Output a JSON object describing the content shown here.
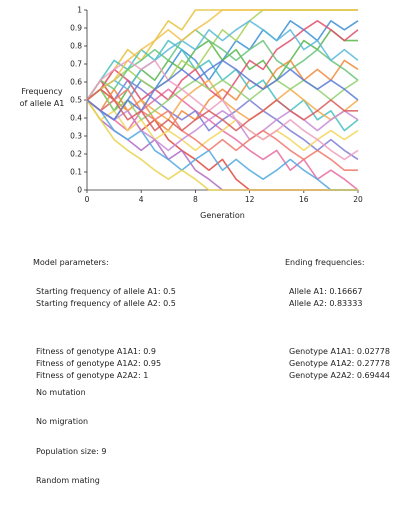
{
  "chart_data": {
    "type": "line",
    "xlabel": "Generation",
    "ylabel_lines": [
      "Frequency",
      "of allele A1"
    ],
    "xlim": [
      0,
      20
    ],
    "ylim": [
      0,
      1
    ],
    "x_ticks": [
      0,
      4,
      8,
      12,
      16,
      20
    ],
    "y_ticks": [
      0,
      0.1,
      0.2,
      0.3,
      0.4,
      0.5,
      0.6,
      0.7,
      0.8,
      0.9,
      1
    ],
    "y_tick_labels": [
      "0",
      "0.1",
      "0.2",
      "0.3",
      "0.4",
      "0.5",
      "0.6",
      "0.7",
      "0.8",
      "0.9",
      "1"
    ],
    "x": [
      0,
      1,
      2,
      3,
      4,
      5,
      6,
      7,
      8,
      9,
      10,
      11,
      12,
      13,
      14,
      15,
      16,
      17,
      18,
      19,
      20
    ],
    "series": [
      {
        "color": "#e8c23a",
        "values": [
          0.5,
          0.56,
          0.67,
          0.78,
          0.72,
          0.83,
          0.94,
          0.89,
          1,
          1,
          1,
          1,
          1,
          1,
          1,
          1,
          1,
          1,
          1,
          1,
          1
        ]
      },
      {
        "color": "#3b8fd6",
        "values": [
          0.5,
          0.44,
          0.39,
          0.5,
          0.61,
          0.56,
          0.67,
          0.78,
          0.72,
          0.61,
          0.72,
          0.83,
          0.78,
          0.89,
          0.83,
          0.94,
          0.89,
          0.83,
          0.94,
          0.89,
          0.94
        ]
      },
      {
        "color": "#e0473b",
        "values": [
          0.5,
          0.61,
          0.5,
          0.44,
          0.33,
          0.39,
          0.28,
          0.22,
          0.17,
          0.11,
          0.17,
          0.06,
          0,
          0,
          0,
          0,
          0,
          0,
          0,
          0,
          0
        ]
      },
      {
        "color": "#57b54a",
        "values": [
          0.5,
          0.56,
          0.44,
          0.56,
          0.67,
          0.61,
          0.72,
          0.67,
          0.78,
          0.83,
          0.72,
          0.78,
          0.67,
          0.72,
          0.61,
          0.72,
          0.83,
          0.78,
          0.89,
          0.83,
          0.83
        ]
      },
      {
        "color": "#f08a3a",
        "values": [
          0.5,
          0.44,
          0.56,
          0.44,
          0.5,
          0.39,
          0.33,
          0.44,
          0.39,
          0.5,
          0.56,
          0.5,
          0.61,
          0.56,
          0.67,
          0.72,
          0.61,
          0.67,
          0.61,
          0.72,
          0.67
        ]
      },
      {
        "color": "#b06ac4",
        "values": [
          0.5,
          0.39,
          0.33,
          0.28,
          0.22,
          0.28,
          0.17,
          0.22,
          0.11,
          0.06,
          0,
          0,
          0,
          0,
          0,
          0,
          0,
          0,
          0,
          0,
          0
        ]
      },
      {
        "color": "#45c0c0",
        "values": [
          0.5,
          0.61,
          0.72,
          0.67,
          0.78,
          0.72,
          0.83,
          0.78,
          0.67,
          0.72,
          0.61,
          0.67,
          0.56,
          0.61,
          0.5,
          0.44,
          0.5,
          0.39,
          0.44,
          0.33,
          0.39
        ]
      },
      {
        "color": "#e86aa0",
        "values": [
          0.5,
          0.44,
          0.39,
          0.33,
          0.44,
          0.5,
          0.56,
          0.5,
          0.44,
          0.39,
          0.33,
          0.28,
          0.22,
          0.17,
          0.22,
          0.11,
          0.17,
          0.06,
          0.11,
          0.06,
          0
        ]
      },
      {
        "color": "#a8d05a",
        "values": [
          0.5,
          0.56,
          0.61,
          0.67,
          0.61,
          0.56,
          0.61,
          0.72,
          0.67,
          0.78,
          0.89,
          0.83,
          0.94,
          1,
          1,
          1,
          1,
          1,
          1,
          1,
          1
        ]
      },
      {
        "color": "#7b7bd6",
        "values": [
          0.5,
          0.44,
          0.5,
          0.61,
          0.56,
          0.5,
          0.44,
          0.39,
          0.44,
          0.33,
          0.39,
          0.44,
          0.5,
          0.44,
          0.39,
          0.33,
          0.28,
          0.22,
          0.28,
          0.22,
          0.17
        ]
      },
      {
        "color": "#f2d65a",
        "values": [
          0.5,
          0.39,
          0.44,
          0.33,
          0.39,
          0.28,
          0.33,
          0.28,
          0.22,
          0.28,
          0.33,
          0.39,
          0.33,
          0.28,
          0.33,
          0.28,
          0.22,
          0.28,
          0.33,
          0.28,
          0.33
        ]
      },
      {
        "color": "#e24e6a",
        "values": [
          0.5,
          0.56,
          0.67,
          0.61,
          0.5,
          0.56,
          0.5,
          0.61,
          0.67,
          0.56,
          0.5,
          0.61,
          0.72,
          0.67,
          0.78,
          0.83,
          0.89,
          0.94,
          0.89,
          0.83,
          0.89
        ]
      },
      {
        "color": "#4fa8e0",
        "values": [
          0.5,
          0.44,
          0.33,
          0.28,
          0.33,
          0.22,
          0.17,
          0.11,
          0.17,
          0.22,
          0.11,
          0.17,
          0.11,
          0.06,
          0.11,
          0.17,
          0.11,
          0.06,
          0,
          0,
          0
        ]
      },
      {
        "color": "#f5a94a",
        "values": [
          0.5,
          0.56,
          0.5,
          0.44,
          0.5,
          0.44,
          0.39,
          0.5,
          0.56,
          0.61,
          0.5,
          0.44,
          0.39,
          0.44,
          0.5,
          0.56,
          0.5,
          0.44,
          0.39,
          0.44,
          0.5
        ]
      },
      {
        "color": "#68c47a",
        "values": [
          0.5,
          0.61,
          0.56,
          0.67,
          0.72,
          0.78,
          0.72,
          0.83,
          0.89,
          0.83,
          0.78,
          0.72,
          0.78,
          0.83,
          0.72,
          0.67,
          0.72,
          0.78,
          0.72,
          0.67,
          0.61
        ]
      },
      {
        "color": "#c88ad8",
        "values": [
          0.5,
          0.44,
          0.39,
          0.44,
          0.33,
          0.28,
          0.22,
          0.28,
          0.33,
          0.39,
          0.44,
          0.39,
          0.28,
          0.33,
          0.39,
          0.44,
          0.39,
          0.33,
          0.39,
          0.44,
          0.39
        ]
      },
      {
        "color": "#e6d24a",
        "values": [
          0.5,
          0.39,
          0.28,
          0.22,
          0.17,
          0.11,
          0.06,
          0.11,
          0.06,
          0,
          0,
          0,
          0,
          0,
          0,
          0,
          0,
          0,
          0,
          0,
          0
        ]
      },
      {
        "color": "#59b8d8",
        "values": [
          0.5,
          0.56,
          0.61,
          0.56,
          0.67,
          0.72,
          0.78,
          0.83,
          0.78,
          0.89,
          0.83,
          0.89,
          0.94,
          0.89,
          0.83,
          0.89,
          0.78,
          0.83,
          0.72,
          0.78,
          0.72
        ]
      },
      {
        "color": "#f0776a",
        "values": [
          0.5,
          0.44,
          0.5,
          0.56,
          0.44,
          0.39,
          0.44,
          0.33,
          0.28,
          0.22,
          0.28,
          0.22,
          0.28,
          0.33,
          0.28,
          0.22,
          0.17,
          0.22,
          0.17,
          0.11,
          0.11
        ]
      },
      {
        "color": "#90d070",
        "values": [
          0.5,
          0.56,
          0.44,
          0.5,
          0.39,
          0.44,
          0.5,
          0.56,
          0.61,
          0.56,
          0.61,
          0.56,
          0.5,
          0.56,
          0.61,
          0.56,
          0.61,
          0.56,
          0.5,
          0.56,
          0.61
        ]
      },
      {
        "color": "#ed9fc0",
        "values": [
          0.5,
          0.61,
          0.67,
          0.72,
          0.67,
          0.72,
          0.61,
          0.56,
          0.5,
          0.44,
          0.5,
          0.39,
          0.33,
          0.28,
          0.33,
          0.39,
          0.33,
          0.28,
          0.22,
          0.17,
          0.22
        ]
      },
      {
        "color": "#f2c14a",
        "values": [
          0.5,
          0.56,
          0.61,
          0.72,
          0.78,
          0.83,
          0.89,
          0.83,
          0.89,
          0.94,
          1,
          1,
          1,
          1,
          1,
          1,
          1,
          1,
          1,
          1,
          1
        ]
      },
      {
        "color": "#5a7ad8",
        "values": [
          0.5,
          0.44,
          0.39,
          0.5,
          0.44,
          0.56,
          0.61,
          0.67,
          0.61,
          0.67,
          0.72,
          0.67,
          0.61,
          0.56,
          0.61,
          0.67,
          0.61,
          0.56,
          0.61,
          0.56,
          0.5
        ]
      },
      {
        "color": "#d85a5a",
        "values": [
          0.5,
          0.56,
          0.5,
          0.39,
          0.44,
          0.33,
          0.39,
          0.33,
          0.39,
          0.44,
          0.39,
          0.33,
          0.39,
          0.44,
          0.5,
          0.44,
          0.39,
          0.44,
          0.5,
          0.44,
          0.44
        ]
      }
    ]
  },
  "params": {
    "header": "Model parameters:",
    "allele_a1": "Starting frequency of allele A1: 0.5",
    "allele_a2": "Starting frequency of allele A2: 0.5",
    "fitness_a1a1": "Fitness of genotype A1A1: 0.9",
    "fitness_a1a2": "Fitness of genotype A1A2: 0.95",
    "fitness_a2a2": "Fitness of genotype A2A2: 1",
    "mutation": "No mutation",
    "migration": "No migration",
    "population": "Population size: 9",
    "mating": "Random mating"
  },
  "ending": {
    "header": "Ending frequencies:",
    "allele_a1": "Allele A1: 0.16667",
    "allele_a2": "Allele A2: 0.83333",
    "genotype_a1a1": "Genotype A1A1: 0.02778",
    "genotype_a1a2": "Genotype A1A2: 0.27778",
    "genotype_a2a2": "Genotype A2A2: 0.69444"
  }
}
